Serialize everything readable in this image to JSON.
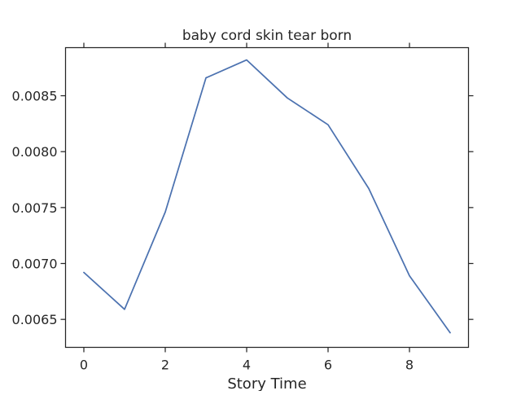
{
  "chart_data": {
    "type": "line",
    "title": "baby cord skin tear born",
    "xlabel": "Story Time",
    "ylabel": "",
    "xlim": [
      -0.45,
      9.45
    ],
    "ylim": [
      0.00625,
      0.00893
    ],
    "x_ticks": [
      0,
      2,
      4,
      6,
      8
    ],
    "x_tick_labels": [
      "0",
      "2",
      "4",
      "6",
      "8"
    ],
    "y_ticks": [
      0.0065,
      0.007,
      0.0075,
      0.008,
      0.0085
    ],
    "y_tick_labels": [
      "0.0065",
      "0.0070",
      "0.0075",
      "0.0080",
      "0.0085"
    ],
    "grid": false,
    "series": [
      {
        "color": "#4c72b0",
        "x": [
          0,
          1,
          2,
          3,
          4,
          5,
          6,
          7,
          8,
          9
        ],
        "y": [
          0.00692,
          0.00659,
          0.00746,
          0.00866,
          0.00882,
          0.00848,
          0.00824,
          0.00767,
          0.00689,
          0.00638
        ]
      }
    ]
  }
}
